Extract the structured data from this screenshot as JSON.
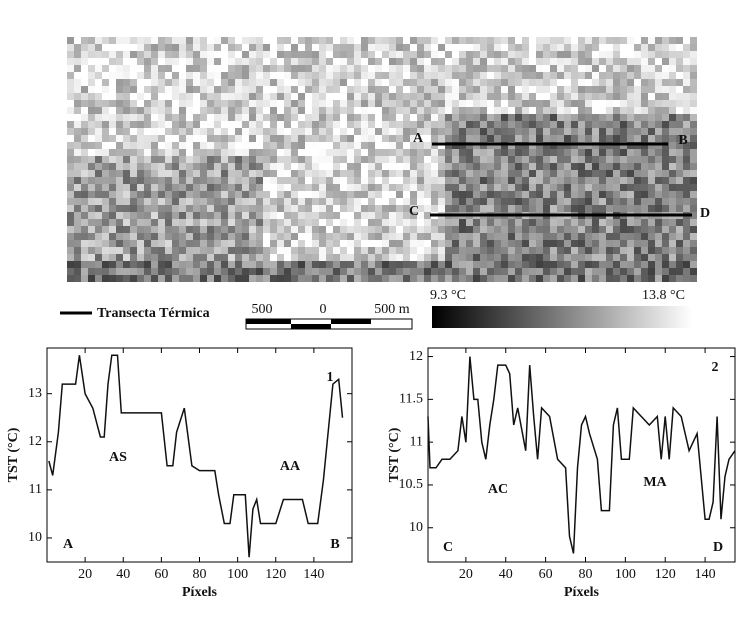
{
  "image": {
    "labels": [
      "A",
      "B",
      "C",
      "D"
    ]
  },
  "legend": {
    "transect": "Transecta Térmica"
  },
  "scale": {
    "labels": [
      "500",
      "0",
      "500 m"
    ]
  },
  "colorbar": {
    "min": "9.3 °C",
    "max": "13.8 °C"
  },
  "chart_data": [
    {
      "type": "line",
      "x_label": "Píxels",
      "y_label": "TST (°C)",
      "annotations": [
        "1",
        "AS",
        "AA",
        "A",
        "B"
      ],
      "x": [
        1,
        3,
        6,
        8,
        15,
        17,
        20,
        24,
        28,
        30,
        32,
        34,
        37,
        39,
        60,
        63,
        66,
        68,
        72,
        74,
        76,
        80,
        88,
        90,
        93,
        96,
        98,
        104,
        106,
        108,
        110,
        112,
        120,
        124,
        134,
        137,
        142,
        145,
        150,
        153,
        155
      ],
      "series": [
        {
          "color": "#111111",
          "values": [
            11.6,
            11.3,
            12.2,
            13.2,
            13.2,
            13.8,
            13.0,
            12.7,
            12.1,
            12.1,
            13.2,
            13.8,
            13.8,
            12.6,
            12.6,
            11.5,
            11.5,
            12.2,
            12.7,
            12.1,
            11.5,
            11.4,
            11.4,
            10.9,
            10.3,
            10.3,
            10.9,
            10.9,
            9.6,
            10.6,
            10.8,
            10.3,
            10.3,
            10.8,
            10.8,
            10.3,
            10.3,
            11.2,
            13.2,
            13.3,
            12.5
          ]
        }
      ],
      "xlim": [
        0,
        160
      ],
      "ylim": [
        9.5,
        13.95
      ],
      "xticks": [
        20,
        40,
        60,
        80,
        100,
        120,
        140
      ],
      "yticks": [
        10,
        11,
        12,
        13
      ]
    },
    {
      "type": "line",
      "x_label": "Píxels",
      "y_label": "TST (°C)",
      "annotations": [
        "2",
        "AC",
        "MA",
        "C",
        "D"
      ],
      "x": [
        1,
        2,
        5,
        8,
        12,
        16,
        18,
        20,
        22,
        24,
        26,
        28,
        30,
        32,
        34,
        36,
        40,
        42,
        44,
        46,
        50,
        52,
        54,
        56,
        58,
        62,
        66,
        70,
        72,
        74,
        76,
        78,
        80,
        82,
        86,
        88,
        92,
        94,
        96,
        98,
        102,
        104,
        108,
        112,
        116,
        118,
        120,
        122,
        124,
        128,
        132,
        136,
        140,
        142,
        144,
        146,
        148,
        150,
        152,
        155
      ],
      "series": [
        {
          "color": "#111111",
          "values": [
            11.3,
            10.7,
            10.7,
            10.8,
            10.8,
            10.9,
            11.3,
            11.0,
            12.0,
            11.5,
            11.5,
            11.0,
            10.8,
            11.2,
            11.5,
            11.9,
            11.9,
            11.8,
            11.2,
            11.4,
            10.9,
            11.9,
            11.3,
            10.8,
            11.4,
            11.3,
            10.8,
            10.7,
            9.9,
            9.7,
            10.7,
            11.2,
            11.3,
            11.1,
            10.8,
            10.2,
            10.2,
            11.2,
            11.4,
            10.8,
            10.8,
            11.4,
            11.3,
            11.2,
            11.3,
            10.8,
            11.3,
            10.8,
            11.4,
            11.3,
            10.9,
            11.1,
            10.1,
            10.1,
            10.3,
            11.3,
            10.1,
            10.6,
            10.8,
            10.9
          ]
        }
      ],
      "xlim": [
        1,
        155
      ],
      "ylim": [
        9.6,
        12.1
      ],
      "xticks": [
        20,
        40,
        60,
        80,
        100,
        120,
        140
      ],
      "yticks": [
        10,
        10.5,
        11,
        11.5,
        12
      ]
    }
  ]
}
